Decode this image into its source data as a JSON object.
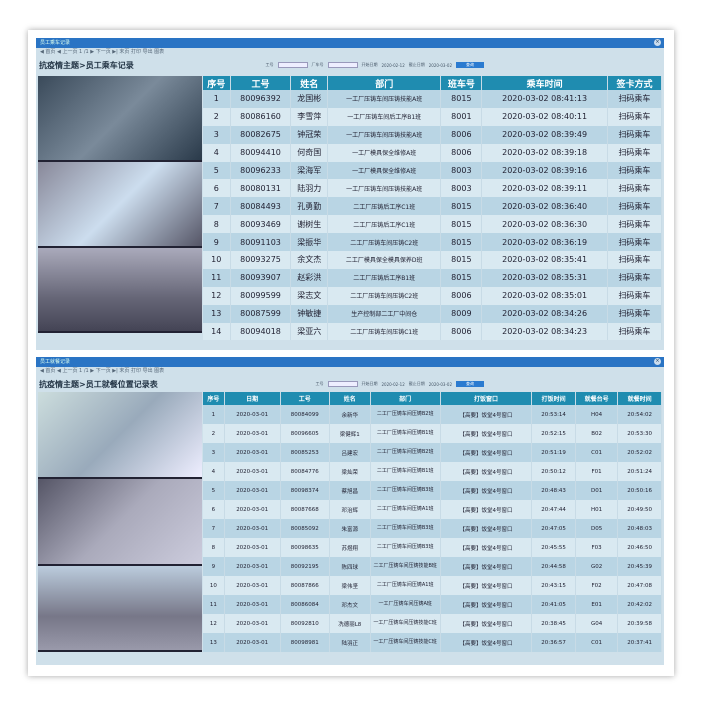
{
  "screen1": {
    "window_title": "员工乘车记录",
    "toolbar": "◀ 首页  ◀ 上一页  1 /1  ▶ 下一页  ▶| 末页  打印  导出  图表",
    "heading": "抗疫情主题>员工乘车记录",
    "filters": {
      "emp_label": "工号",
      "car_label": "厂车号",
      "start_label": "开始日期",
      "start": "2020-02-12",
      "end_label": "截止日期",
      "end": "2020-03-02",
      "query": "查询"
    },
    "columns": [
      "序号",
      "工号",
      "姓名",
      "部门",
      "班车号",
      "乘车时间",
      "签卡方式"
    ],
    "rows": [
      [
        "1",
        "80096392",
        "龙国彬",
        "一工厂压铸车间压铸技能A班",
        "8015",
        "2020-03-02 08:41:13",
        "扫码乘车"
      ],
      [
        "2",
        "80086160",
        "李雪萍",
        "一工厂压铸车间后工序B1班",
        "8001",
        "2020-03-02 08:40:11",
        "扫码乘车"
      ],
      [
        "3",
        "80082675",
        "钟冠荣",
        "一工厂压铸车间压铸技能A班",
        "8006",
        "2020-03-02 08:39:49",
        "扫码乘车"
      ],
      [
        "4",
        "80094410",
        "何奇国",
        "一工厂模具保全维修A班",
        "8006",
        "2020-03-02 08:39:18",
        "扫码乘车"
      ],
      [
        "5",
        "80096233",
        "梁海军",
        "一工厂模具保全维修A班",
        "8003",
        "2020-03-02 08:39:16",
        "扫码乘车"
      ],
      [
        "6",
        "80080131",
        "陆羽力",
        "一工厂压铸车间压铸技能A班",
        "8003",
        "2020-03-02 08:39:11",
        "扫码乘车"
      ],
      [
        "7",
        "80084493",
        "孔勇勤",
        "二工厂压铸后工序C1班",
        "8015",
        "2020-03-02 08:36:40",
        "扫码乘车"
      ],
      [
        "8",
        "80093469",
        "谢树生",
        "二工厂压铸后工序C1班",
        "8015",
        "2020-03-02 08:36:30",
        "扫码乘车"
      ],
      [
        "9",
        "80091103",
        "梁振华",
        "二工厂压铸车间压铸C2班",
        "8015",
        "2020-03-02 08:36:19",
        "扫码乘车"
      ],
      [
        "10",
        "80093275",
        "余文杰",
        "二工厂模具保全模具保养D班",
        "8015",
        "2020-03-02 08:35:41",
        "扫码乘车"
      ],
      [
        "11",
        "80093907",
        "赵彩洪",
        "二工厂压铸后工序B1班",
        "8015",
        "2020-03-02 08:35:31",
        "扫码乘车"
      ],
      [
        "12",
        "80099599",
        "梁志文",
        "二工厂压铸车间压铸C2班",
        "8006",
        "2020-03-02 08:35:01",
        "扫码乘车"
      ],
      [
        "13",
        "80087599",
        "钟敏捷",
        "生产控制部二工厂中间仓",
        "8009",
        "2020-03-02 08:34:26",
        "扫码乘车"
      ],
      [
        "14",
        "80094018",
        "梁亚六",
        "二工厂压铸车间压铸C1班",
        "8006",
        "2020-03-02 08:34:23",
        "扫码乘车"
      ]
    ]
  },
  "screen2": {
    "window_title": "员工就餐记录",
    "toolbar": "◀ 首页  ◀ 上一页  1 /1  ▶ 下一页  ▶| 末页  打印  导出  图表",
    "heading": "抗疫情主题>员工就餐位置记录表",
    "filters": {
      "emp_label": "工号",
      "start_label": "开始日期",
      "start": "2020-02-12",
      "end_label": "截止日期",
      "end": "2020-03-02",
      "query": "查询"
    },
    "columns": [
      "序号",
      "日期",
      "工号",
      "姓名",
      "部门",
      "打饭窗口",
      "打饭时间",
      "就餐台号",
      "就餐时间"
    ],
    "rows": [
      [
        "1",
        "2020-03-01",
        "80084099",
        "余新华",
        "二工厂压铸车间压铸B2班",
        "【高要】饭堂4号窗口",
        "20:53:14",
        "H04",
        "20:54:02"
      ],
      [
        "2",
        "2020-03-01",
        "80096605",
        "梁健辉1",
        "二工厂压铸车间压铸B1班",
        "【高要】饭堂4号窗口",
        "20:52:15",
        "B02",
        "20:53:30"
      ],
      [
        "3",
        "2020-03-01",
        "80085253",
        "吕建宏",
        "二工厂压铸车间压铸B2班",
        "【高要】饭堂4号窗口",
        "20:51:19",
        "C01",
        "20:52:02"
      ],
      [
        "4",
        "2020-03-01",
        "80084776",
        "梁灿荣",
        "二工厂压铸车间压铸B1班",
        "【高要】饭堂4号窗口",
        "20:50:12",
        "F01",
        "20:51:24"
      ],
      [
        "5",
        "2020-03-01",
        "80098374",
        "蔡旭昌",
        "二工厂压铸车间压铸B3班",
        "【高要】饭堂4号窗口",
        "20:48:43",
        "D01",
        "20:50:16"
      ],
      [
        "6",
        "2020-03-01",
        "80087668",
        "邓治辉",
        "二工厂压铸车间压铸A1班",
        "【高要】饭堂4号窗口",
        "20:47:44",
        "H01",
        "20:49:50"
      ],
      [
        "7",
        "2020-03-01",
        "80085092",
        "朱富源",
        "二工厂压铸车间压铸B3班",
        "【高要】饭堂4号窗口",
        "20:47:05",
        "D05",
        "20:48:03"
      ],
      [
        "8",
        "2020-03-01",
        "80098635",
        "苏煜翔",
        "二工厂压铸车间压铸B3班",
        "【高要】饭堂4号窗口",
        "20:45:55",
        "F03",
        "20:46:50"
      ],
      [
        "9",
        "2020-03-01",
        "80092195",
        "陈四球",
        "二工厂压铸车间压铸技能B班",
        "【高要】饭堂4号窗口",
        "20:44:58",
        "G02",
        "20:45:39"
      ],
      [
        "10",
        "2020-03-01",
        "80087866",
        "梁伟坚",
        "二工厂压铸车间压铸A1班",
        "【高要】饭堂4号窗口",
        "20:43:15",
        "F02",
        "20:47:08"
      ],
      [
        "11",
        "2020-03-01",
        "80086084",
        "邓杰文",
        "一工厂压铸车间压铸A班",
        "【高要】饭堂4号窗口",
        "20:41:05",
        "E01",
        "20:42:02"
      ],
      [
        "12",
        "2020-03-01",
        "80092810",
        "冼德丽L8",
        "一工厂压铸车间压铸技能C班",
        "【高要】饭堂4号窗口",
        "20:38:45",
        "G04",
        "20:39:58"
      ],
      [
        "13",
        "2020-03-01",
        "80098981",
        "陆羽正",
        "一工厂压铸车间压铸技能C班",
        "【高要】饭堂4号窗口",
        "20:36:57",
        "C01",
        "20:37:41"
      ]
    ]
  }
}
